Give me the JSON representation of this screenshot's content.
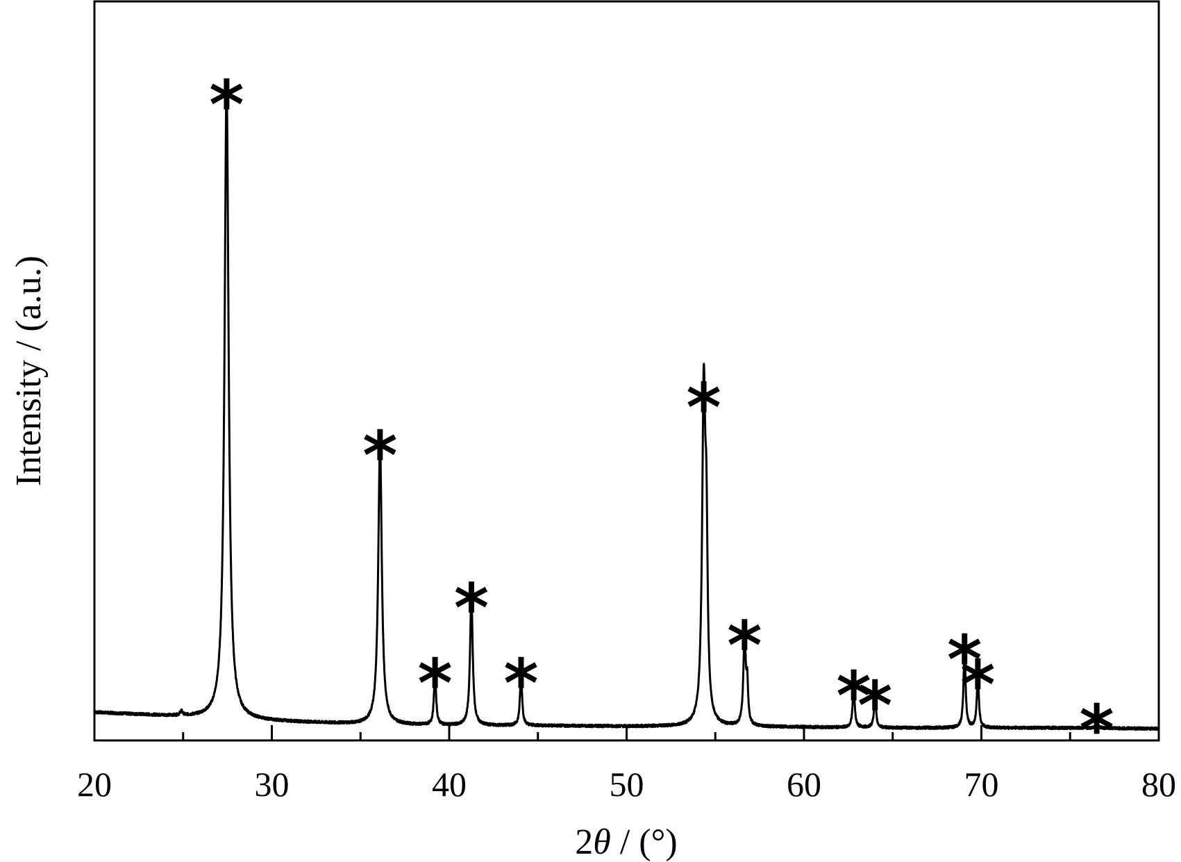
{
  "chart_data": {
    "type": "line",
    "xlabel": {
      "prefix": "2",
      "symbol": "θ",
      "suffix": " / (°)"
    },
    "ylabel": "Intensity / (a.u.)",
    "xlim": [
      20,
      80
    ],
    "ylim": [
      0,
      100
    ],
    "x_ticks": [
      20,
      30,
      40,
      50,
      60,
      70,
      80
    ],
    "x_minor_ticks": [
      25,
      35,
      45,
      55,
      65,
      75
    ],
    "y_tick_labels": false,
    "grid": false,
    "legend": "none",
    "baseline": [
      [
        20,
        3.8
      ],
      [
        25,
        3.2
      ],
      [
        30,
        2.6
      ],
      [
        35,
        2.2
      ],
      [
        40,
        2.0
      ],
      [
        45,
        2.0
      ],
      [
        50,
        1.9
      ],
      [
        55,
        1.9
      ],
      [
        60,
        1.8
      ],
      [
        65,
        1.7
      ],
      [
        70,
        1.7
      ],
      [
        75,
        1.7
      ],
      [
        80,
        1.6
      ]
    ],
    "peaks": [
      {
        "x": 24.9,
        "height": 0.6,
        "width": 0.08
      },
      {
        "x": 27.45,
        "height": 85.5,
        "width": 0.14
      },
      {
        "x": 36.1,
        "height": 38.0,
        "width": 0.12
      },
      {
        "x": 39.2,
        "height": 7.2,
        "width": 0.07
      },
      {
        "x": 41.25,
        "height": 17.4,
        "width": 0.09
      },
      {
        "x": 44.05,
        "height": 7.2,
        "width": 0.07
      },
      {
        "x": 54.35,
        "height": 44.5,
        "width": 0.11
      },
      {
        "x": 54.5,
        "height": 20.0,
        "width": 0.08
      },
      {
        "x": 56.65,
        "height": 12.3,
        "width": 0.08
      },
      {
        "x": 56.8,
        "height": 5.0,
        "width": 0.06
      },
      {
        "x": 62.8,
        "height": 5.5,
        "width": 0.07
      },
      {
        "x": 64.0,
        "height": 4.2,
        "width": 0.07
      },
      {
        "x": 69.05,
        "height": 10.4,
        "width": 0.07
      },
      {
        "x": 69.8,
        "height": 7.0,
        "width": 0.07
      },
      {
        "x": 76.5,
        "height": 1.0,
        "width": 0.07
      }
    ],
    "markers": [
      {
        "x": 27.45,
        "y": 85.5,
        "label": "*"
      },
      {
        "x": 36.1,
        "y": 38.0,
        "label": "*"
      },
      {
        "x": 39.2,
        "y": 7.2,
        "label": "*"
      },
      {
        "x": 41.25,
        "y": 17.4,
        "label": "*"
      },
      {
        "x": 44.05,
        "y": 7.2,
        "label": "*"
      },
      {
        "x": 54.35,
        "y": 44.5,
        "label": "*"
      },
      {
        "x": 56.65,
        "y": 12.3,
        "label": "*"
      },
      {
        "x": 62.8,
        "y": 5.5,
        "label": "*"
      },
      {
        "x": 64.0,
        "y": 4.2,
        "label": "*"
      },
      {
        "x": 69.05,
        "y": 10.4,
        "label": "*"
      },
      {
        "x": 69.8,
        "y": 7.0,
        "label": "*"
      },
      {
        "x": 76.5,
        "y": 1.0,
        "label": "*"
      }
    ],
    "line_color": "#000000"
  }
}
